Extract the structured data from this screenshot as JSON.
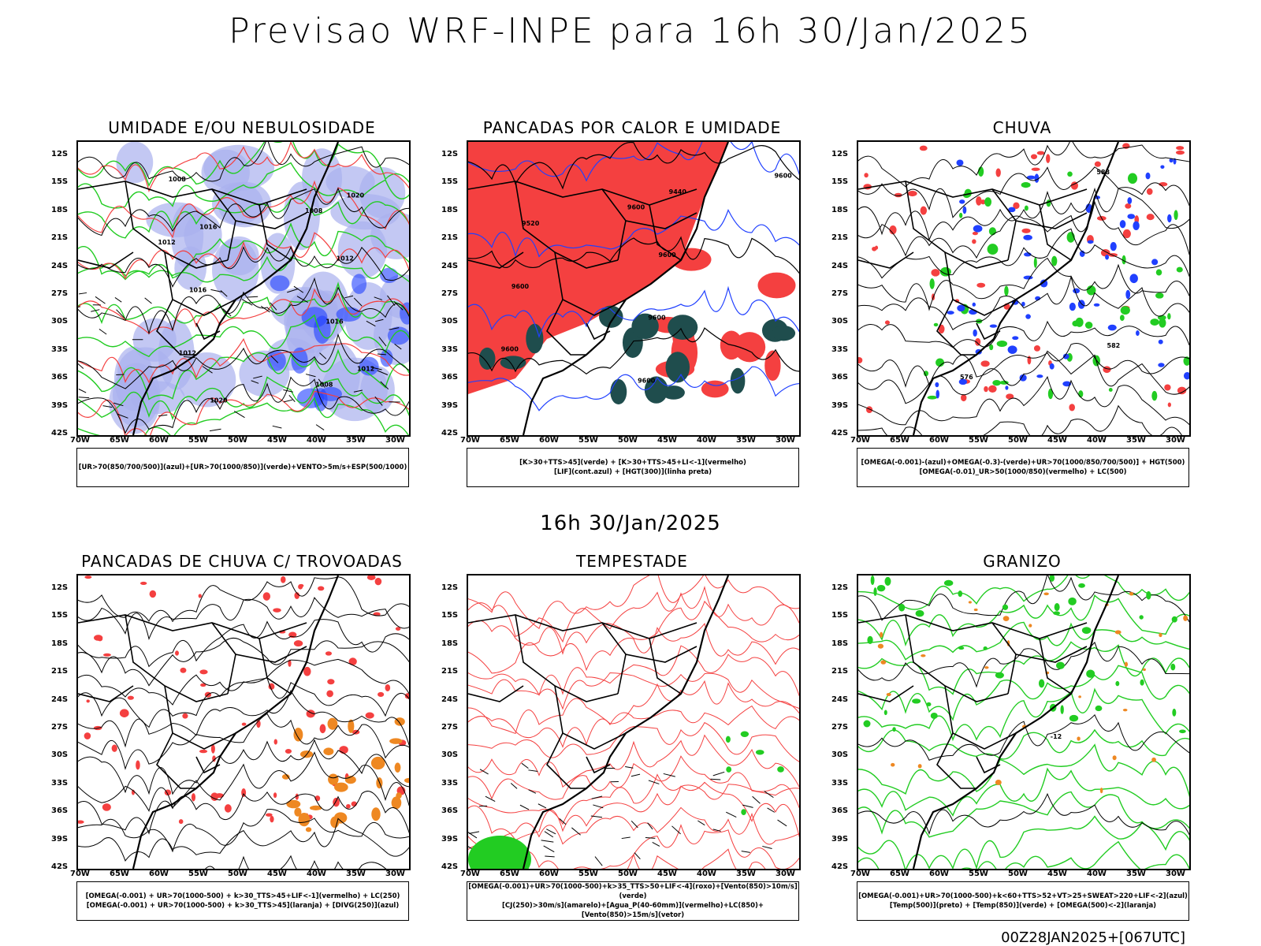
{
  "title": "Previsao WRF-INPE  para 16h 30/Jan/2025",
  "subtitle": "16h 30/Jan/2025",
  "footer": "00Z28JAN2025+[067UTC]",
  "axes": {
    "lat_labels": [
      "12S",
      "15S",
      "18S",
      "21S",
      "24S",
      "27S",
      "30S",
      "33S",
      "36S",
      "39S",
      "42S"
    ],
    "lon_labels": [
      "70W",
      "65W",
      "60W",
      "55W",
      "50W",
      "45W",
      "40W",
      "35W",
      "30W"
    ]
  },
  "panels": [
    {
      "title": "UMIDADE E/OU NEBULOSIDADE",
      "legend": [
        "[UR>70(850/700/500)](azul)+[UR>70(1000/850)](verde)+VENTO>5m/s+ESP(500/1000)"
      ],
      "labels": [
        "1012",
        "1008",
        "1008",
        "1008",
        "1012",
        "1016",
        "1016",
        "1012",
        "1016",
        "1020",
        "1020",
        "1012"
      ]
    },
    {
      "title": "PANCADAS POR CALOR E UMIDADE",
      "legend": [
        "[K>30+TTS>45](verde) + [K>30+TTS>45+LI<-1](vermelho)",
        "[LIF](cont.azul) + [HGT(300)](linha preta)"
      ],
      "labels": [
        "9600",
        "9600",
        "9600",
        "9600",
        "9600",
        "9600",
        "9600",
        "9520",
        "9440"
      ]
    },
    {
      "title": "CHUVA",
      "legend": [
        "[OMEGA(-0.001)-(azul)+OMEGA(-0.3)-(verde)+UR>70(1000/850/700/500)] + HGT(500)",
        "[OMEGA(-0.01)_UR>50(1000/850)(vermelho) + LC(500)"
      ],
      "labels": [
        "588",
        "576",
        "582"
      ]
    },
    {
      "title": "PANCADAS DE CHUVA C/ TROVOADAS",
      "legend": [
        "[OMEGA(-0.001) + UR>70(1000-500) + k>30_TTS>45+LIF<-1](vermelho) + LC(250)",
        "[OMEGA(-0.001) + UR>70(1000-500) + k>30_TTS>45](laranja) + [DIVG(250)](azul)"
      ],
      "labels": []
    },
    {
      "title": "TEMPESTADE",
      "legend": [
        "[OMEGA(-0.001)+UR>70(1000-500)+k>35_TTS>50+LIF<-4](roxo)+[Vento(850)>10m/s](verde)",
        "[CJ(250)>30m/s](amarelo)+[Agua_P(40-60mm)](vermelho)+LC(850)+[Vento(850)>15m/s](vetor)"
      ],
      "labels": []
    },
    {
      "title": "GRANIZO",
      "legend": [
        "[OMEGA(-0.001)+UR>70(1000-500)+k<60+TTS>52+VT>25+SWEAT>220+LIF<-2](azul)",
        "[Temp(500)](preto) + [Temp(850)](verde) + [OMEGA(500)<-2](laranja)"
      ],
      "labels": [
        "-12"
      ]
    }
  ],
  "colors": {
    "red": "#f44040",
    "green": "#22cc22",
    "blue": "#2040ff",
    "lightblue": "#aab0ee",
    "darkgreen": "#1f4d4d",
    "orange": "#ee8822"
  }
}
